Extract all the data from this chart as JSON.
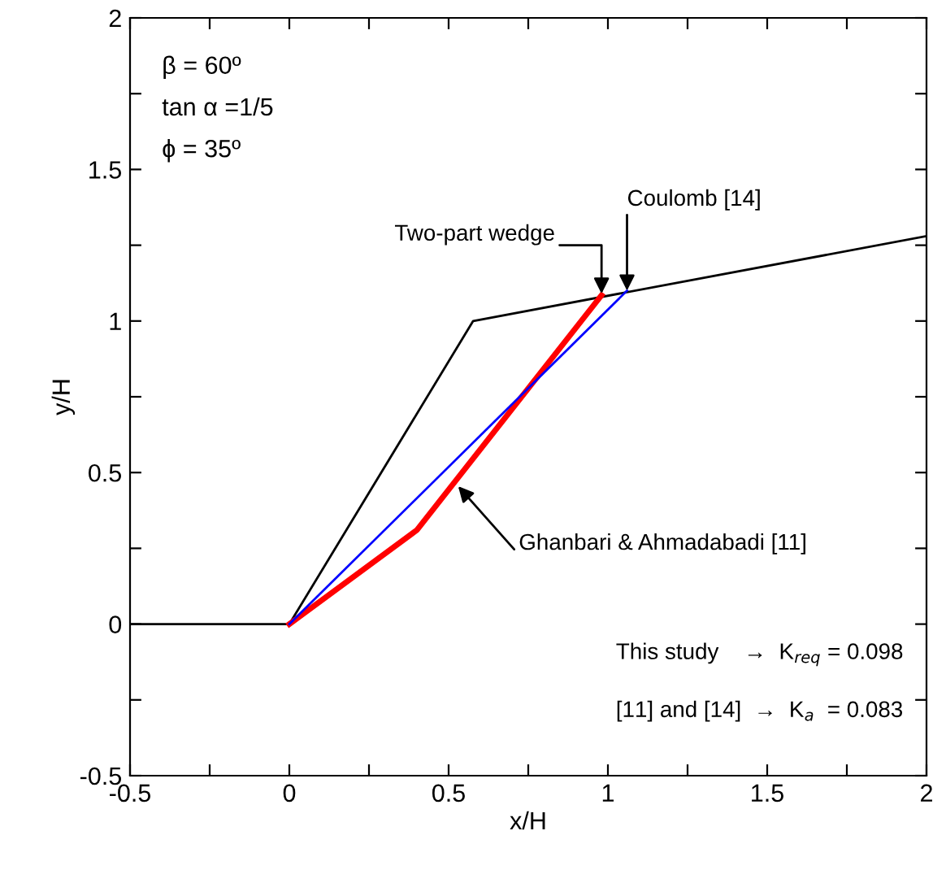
{
  "chart_data": {
    "type": "line",
    "xlabel": "x/H",
    "ylabel": "y/H",
    "series": [
      {
        "color": "#000000",
        "x": [
          -0.5,
          0,
          0.577,
          2
        ],
        "values": [
          0,
          0,
          1,
          1.28
        ]
      },
      {
        "color": "#ff0000",
        "x": [
          0,
          0.4,
          0.98
        ],
        "values": [
          0,
          0.31,
          1.085
        ]
      },
      {
        "color": "#0000ff",
        "x": [
          0,
          1.06
        ],
        "values": [
          0,
          1.1
        ]
      }
    ],
    "xlim": [
      -0.5,
      2
    ],
    "ylim": [
      -0.5,
      2
    ],
    "xticks": [
      -0.5,
      {
        "value": -0.25,
        "label": null
      },
      0,
      {
        "value": 0.25,
        "label": null
      },
      0.5,
      {
        "value": 0.75,
        "label": null
      },
      1,
      {
        "value": 1.25,
        "label": null
      },
      1.5,
      {
        "value": 1.75,
        "label": null
      },
      2
    ],
    "yticks": [
      -0.5,
      {
        "value": -0.25,
        "label": null
      },
      0,
      {
        "value": 0.25,
        "label": null
      },
      0.5,
      {
        "value": 0.75,
        "label": null
      },
      1,
      {
        "value": 1.25,
        "label": null
      },
      1.5,
      {
        "value": 1.75,
        "label": null
      },
      2
    ],
    "grid": false,
    "marker": "none",
    "line_style": "solid",
    "annotations": [
      "β = 60º",
      "tan α =1/5",
      "ϕ = 35º",
      {
        "text": "Two-part wedge",
        "x": 0.98,
        "y": 1.09
      },
      {
        "text": "Coulomb [14]",
        "x": 1.06,
        "y": 1.1
      },
      {
        "text": "Ghanbari & Ahmadabadi [11]",
        "x": 0.53,
        "y": 0.455
      },
      "This study    →  K$_{req}$ = 0.098",
      "[11] and [14]  →  K$_{a}$  = 0.083"
    ]
  }
}
